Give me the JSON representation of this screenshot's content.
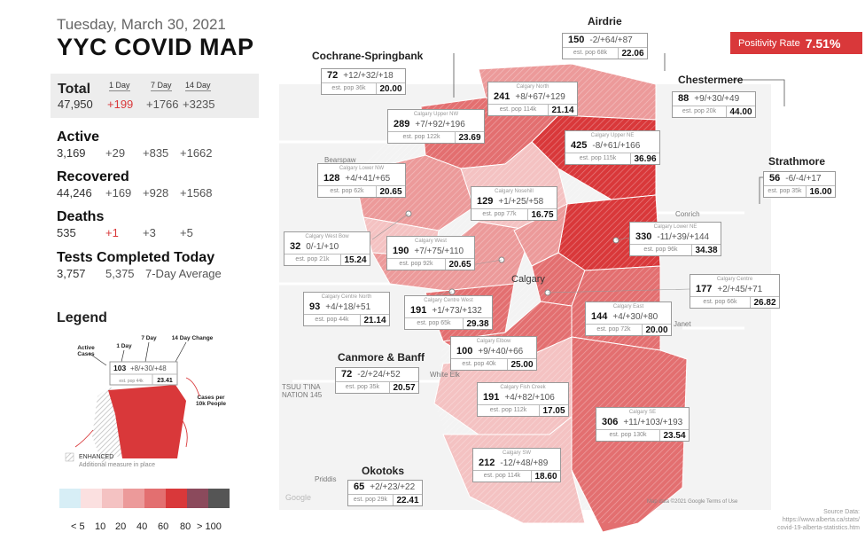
{
  "header": {
    "date": "Tuesday, March 30, 2021",
    "title": "YYC COVID MAP"
  },
  "total": {
    "label": "Total",
    "h1": "1 Day",
    "h7": "7 Day",
    "h14": "14 Day",
    "value": "47,950",
    "d1": "+199",
    "d7": "+1766",
    "d14": "+3235"
  },
  "active": {
    "label": "Active",
    "value": "3,169",
    "d1": "+29",
    "d7": "+835",
    "d14": "+1662"
  },
  "recovered": {
    "label": "Recovered",
    "value": "44,246",
    "d1": "+169",
    "d7": "+928",
    "d14": "+1568"
  },
  "deaths": {
    "label": "Deaths",
    "value": "535",
    "d1": "+1",
    "d7": "+3",
    "d14": "+5"
  },
  "tests": {
    "label": "Tests Completed Today",
    "value": "3,757",
    "avg": "5,375",
    "avg_label": "7-Day Average"
  },
  "legend": {
    "title": "Legend",
    "active_cases": "Active Cases",
    "one_day": "1 Day",
    "seven_day": "7 Day",
    "fourteen_day": "14 Day Change",
    "cases_per": "Cases per 10k People",
    "sample_top": "103",
    "sample_change": "+8/+30/+48",
    "sample_pop": "est. pop 44k",
    "sample_rate": "23.41",
    "enhanced": "ENHANCED",
    "enhanced_sub": "Additional measure in place",
    "scale_colors": [
      "#d7eef6",
      "#fbe0e0",
      "#f4c2c2",
      "#ec9a9a",
      "#e36f70",
      "#d9383a",
      "#8b4a5c",
      "#555555"
    ],
    "scale_labels": [
      "< 5",
      "10",
      "20",
      "40",
      "60",
      "80",
      "> 100"
    ]
  },
  "positivity": {
    "label": "Positivity Rate",
    "value": "7.51%"
  },
  "source": {
    "line1": "Source Data:",
    "line2": "https://www.alberta.ca/stats/",
    "line3": "covid-19-alberta-statistics.htm"
  },
  "attribution": "Map data ©2021 Google   Terms of Use",
  "map_labels": {
    "calgary": "Calgary",
    "white_elk": "White Elk",
    "priddis": "Priddis",
    "google": "Google",
    "conrich": "Conrich",
    "janet": "Janet",
    "bearspaw": "Bearspaw",
    "tsuutina": "TSUU T'INA NATION 145"
  },
  "regions": {
    "airdrie": {
      "label": "Airdrie",
      "top": "150",
      "change": "-2/+64/+87",
      "pop": "est. pop 68k",
      "rate": "22.06"
    },
    "cochrane": {
      "label": "Cochrane-Springbank",
      "top": "72",
      "change": "+12/+32/+18",
      "pop": "est. pop 36k",
      "rate": "20.00"
    },
    "chestermere": {
      "label": "Chestermere",
      "top": "88",
      "change": "+9/+30/+49",
      "pop": "est. pop 20k",
      "rate": "44.00"
    },
    "strathmore": {
      "label": "Strathmore",
      "top": "56",
      "change": "-6/-4/+17",
      "pop": "est. pop 35k",
      "rate": "16.00"
    },
    "canmore": {
      "label": "Canmore & Banff",
      "top": "72",
      "change": "-2/+24/+52",
      "pop": "est. pop 35k",
      "rate": "20.57"
    },
    "okotoks": {
      "label": "Okotoks",
      "top": "65",
      "change": "+2/+23/+22",
      "pop": "est. pop 29k",
      "rate": "22.41"
    },
    "north": {
      "sub": "Calgary North",
      "top": "241",
      "change": "+8/+67/+129",
      "pop": "est. pop 114k",
      "rate": "21.14"
    },
    "upper_nw": {
      "sub": "Calgary Upper NW",
      "top": "289",
      "change": "+7/+92/+196",
      "pop": "est. pop 122k",
      "rate": "23.69"
    },
    "upper_ne": {
      "sub": "Calgary Upper NE",
      "top": "425",
      "change": "-8/+61/+166",
      "pop": "est. pop 115k",
      "rate": "36.96"
    },
    "lower_nw": {
      "sub": "Calgary Lower NW",
      "top": "128",
      "change": "+4/+41/+65",
      "pop": "est. pop 62k",
      "rate": "20.65"
    },
    "nosehill": {
      "sub": "Calgary Nosehill",
      "top": "129",
      "change": "+1/+25/+58",
      "pop": "est. pop 77k",
      "rate": "16.75"
    },
    "west_bow": {
      "sub": "Calgary West Bow",
      "top": "32",
      "change": "0/-1/+10",
      "pop": "est. pop 21k",
      "rate": "15.24"
    },
    "west": {
      "sub": "Calgary West",
      "top": "190",
      "change": "+7/+75/+110",
      "pop": "est. pop 92k",
      "rate": "20.65"
    },
    "lower_ne": {
      "sub": "Calgary Lower NE",
      "top": "330",
      "change": "-11/+39/+144",
      "pop": "est. pop 96k",
      "rate": "34.38"
    },
    "centre_north": {
      "sub": "Calgary Centre North",
      "top": "93",
      "change": "+4/+18/+51",
      "pop": "est. pop 44k",
      "rate": "21.14"
    },
    "centre_west": {
      "sub": "Calgary Centre West",
      "top": "191",
      "change": "+1/+73/+132",
      "pop": "est. pop 65k",
      "rate": "29.38"
    },
    "centre": {
      "sub": "Calgary Centre",
      "top": "177",
      "change": "+2/+45/+71",
      "pop": "est. pop 66k",
      "rate": "26.82"
    },
    "east": {
      "sub": "Calgary East",
      "top": "144",
      "change": "+4/+30/+80",
      "pop": "est. pop 72k",
      "rate": "20.00"
    },
    "elbow": {
      "sub": "Calgary Elbow",
      "top": "100",
      "change": "+9/+40/+66",
      "pop": "est. pop 40k",
      "rate": "25.00"
    },
    "fish_creek": {
      "sub": "Calgary Fish Creek",
      "top": "191",
      "change": "+4/+82/+106",
      "pop": "est. pop 112k",
      "rate": "17.05"
    },
    "se": {
      "sub": "Calgary SE",
      "top": "306",
      "change": "+11/+103/+193",
      "pop": "est. pop 130k",
      "rate": "23.54"
    },
    "sw": {
      "sub": "Calgary SW",
      "top": "212",
      "change": "-12/+48/+89",
      "pop": "est. pop 114k",
      "rate": "18.60"
    }
  }
}
